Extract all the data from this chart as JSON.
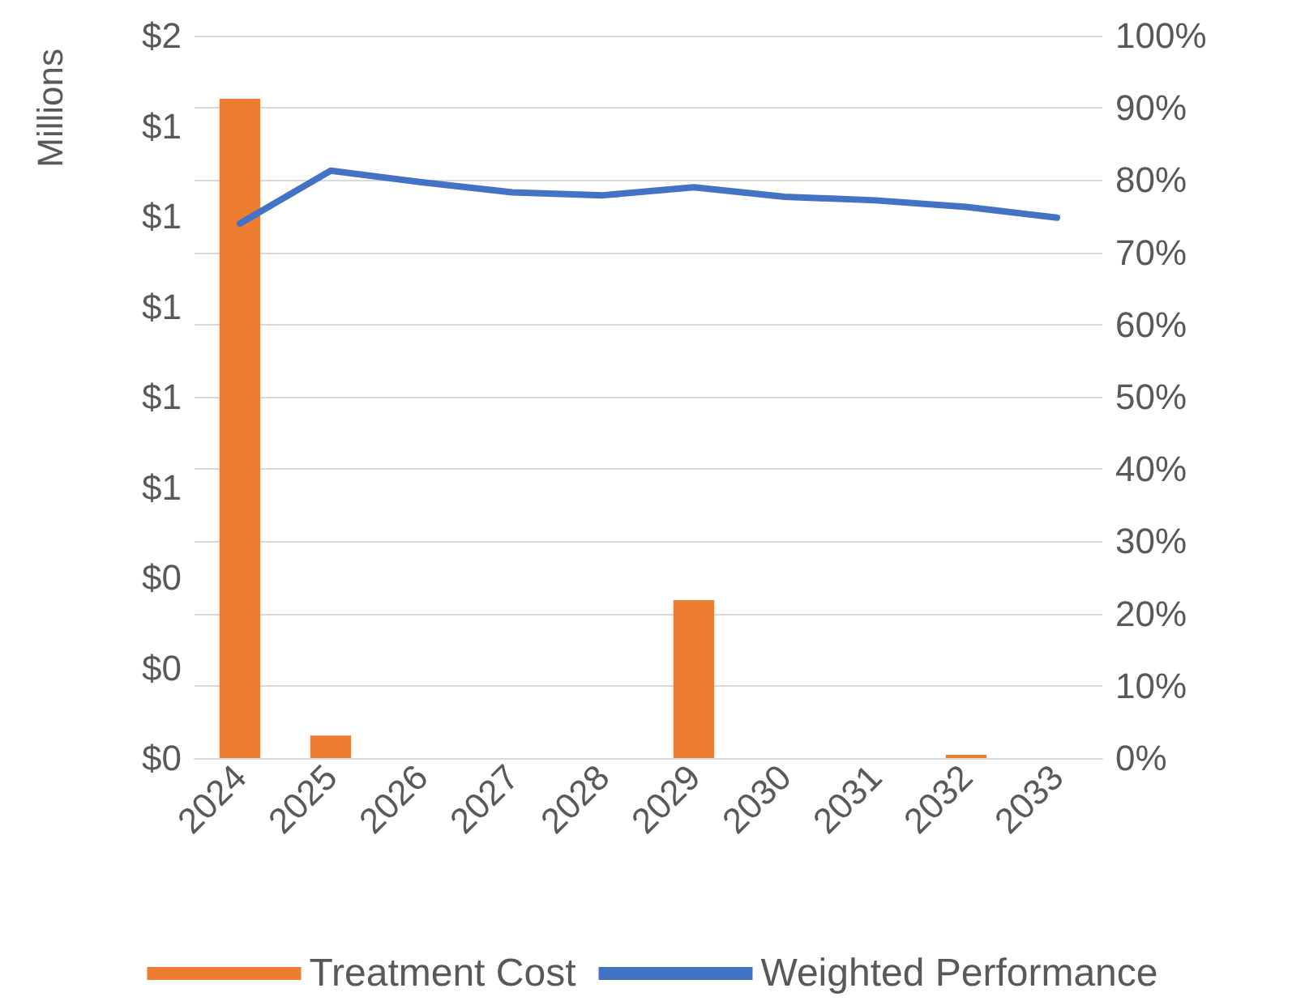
{
  "chart_data": {
    "type": "bar",
    "ylabel": "Millions",
    "categories": [
      "2024",
      "2025",
      "2026",
      "2027",
      "2028",
      "2029",
      "2030",
      "2031",
      "2032",
      "2033"
    ],
    "series": [
      {
        "name": "Treatment Cost",
        "color": "#ed7d31",
        "values": [
          1.46,
          0.05,
          0,
          0,
          0,
          0.35,
          0,
          0,
          0.007,
          0
        ]
      },
      {
        "name": "Weighted Performance",
        "type": "line",
        "axis": "y2",
        "color": "#4472c4",
        "values": [
          74,
          81.3,
          79.7,
          78.3,
          77.9,
          79,
          77.7,
          77.2,
          76.3,
          74.8
        ]
      }
    ],
    "ylim": [
      0,
      1.6
    ],
    "yticks": [
      {
        "value": 0,
        "label": "$0"
      },
      {
        "value": 0.2,
        "label": "$0"
      },
      {
        "value": 0.4,
        "label": "$0"
      },
      {
        "value": 0.6,
        "label": "$1"
      },
      {
        "value": 0.8,
        "label": "$1"
      },
      {
        "value": 1.0,
        "label": "$1"
      },
      {
        "value": 1.2,
        "label": "$1"
      },
      {
        "value": 1.4,
        "label": "$1"
      },
      {
        "value": 1.6,
        "label": "$2"
      }
    ],
    "y2lim": [
      0,
      100
    ],
    "y2ticks": [
      {
        "value": 0,
        "label": "0%"
      },
      {
        "value": 10,
        "label": "10%"
      },
      {
        "value": 20,
        "label": "20%"
      },
      {
        "value": 30,
        "label": "30%"
      },
      {
        "value": 40,
        "label": "40%"
      },
      {
        "value": 50,
        "label": "50%"
      },
      {
        "value": 60,
        "label": "60%"
      },
      {
        "value": 70,
        "label": "70%"
      },
      {
        "value": 80,
        "label": "80%"
      },
      {
        "value": 90,
        "label": "90%"
      },
      {
        "value": 100,
        "label": "100%"
      }
    ],
    "grid": true,
    "legend": "bottom",
    "marker": "none"
  }
}
